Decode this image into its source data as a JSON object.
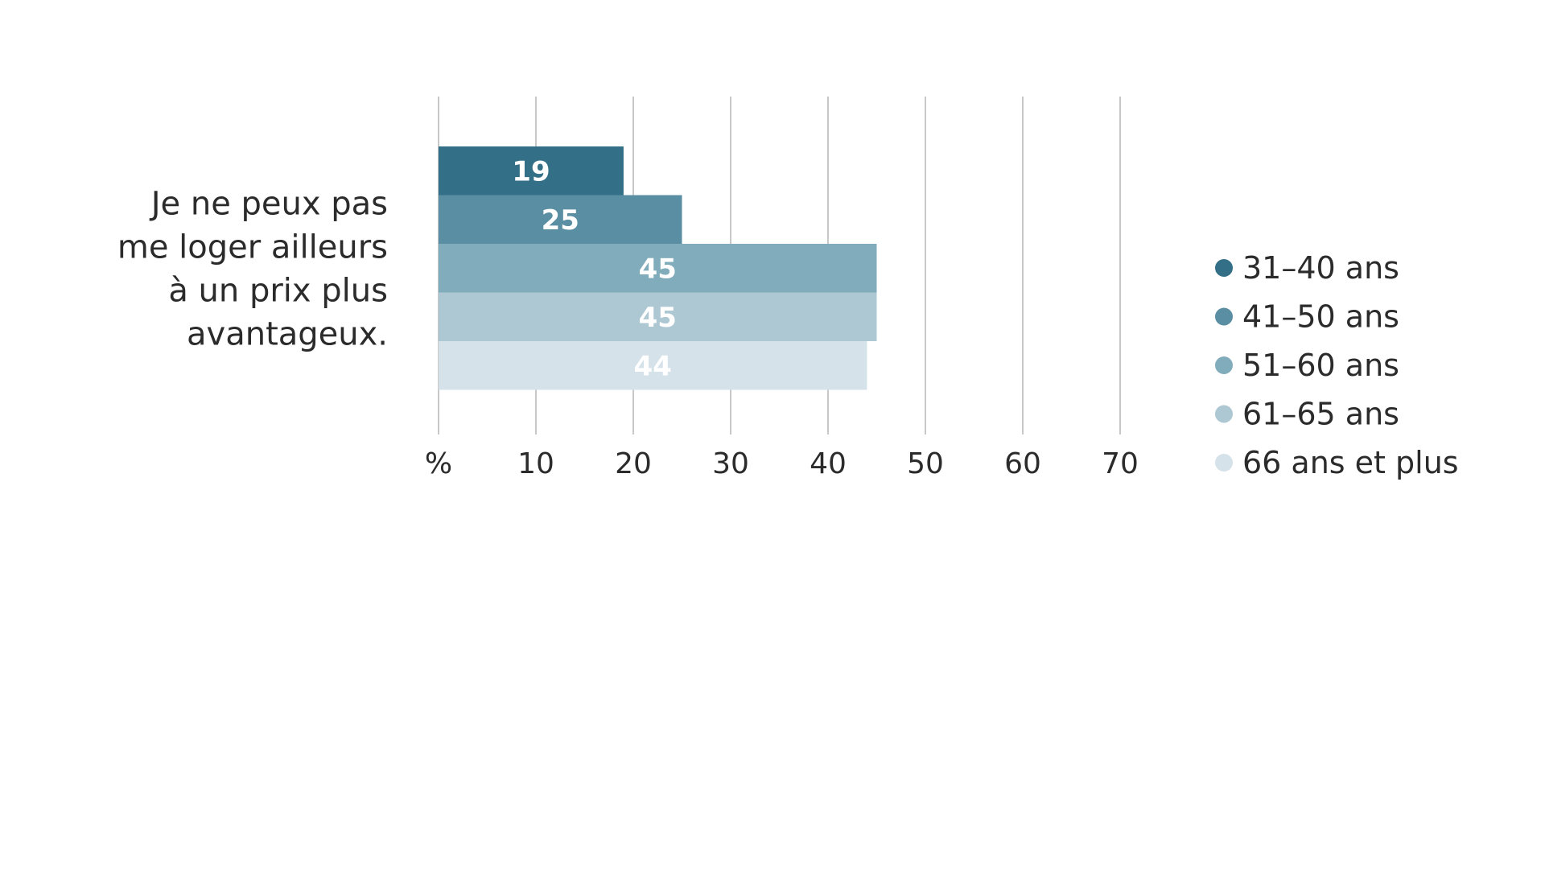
{
  "chart_data": {
    "type": "bar",
    "orientation": "horizontal",
    "categories": [
      "Je ne peux pas me loger ailleurs à un prix plus avantageux."
    ],
    "category_lines": [
      "Je ne peux pas",
      "me loger ailleurs",
      "à un prix plus",
      "avantageux."
    ],
    "series": [
      {
        "name": "31–40 ans",
        "values": [
          19
        ],
        "color": "#336f87"
      },
      {
        "name": "41–50 ans",
        "values": [
          25
        ],
        "color": "#5a8ea3"
      },
      {
        "name": "51–60 ans",
        "values": [
          45
        ],
        "color": "#81acbb"
      },
      {
        "name": "61–65 ans",
        "values": [
          45
        ],
        "color": "#adc7d3"
      },
      {
        "name": "66 ans et plus",
        "values": [
          44
        ],
        "color": "#d5e2e9"
      }
    ],
    "xticks": [
      "%",
      "10",
      "20",
      "30",
      "40",
      "50",
      "60",
      "70"
    ],
    "xlim": [
      0,
      70
    ],
    "grid": true,
    "legend_position": "right",
    "title": "",
    "xlabel": "",
    "ylabel": ""
  }
}
